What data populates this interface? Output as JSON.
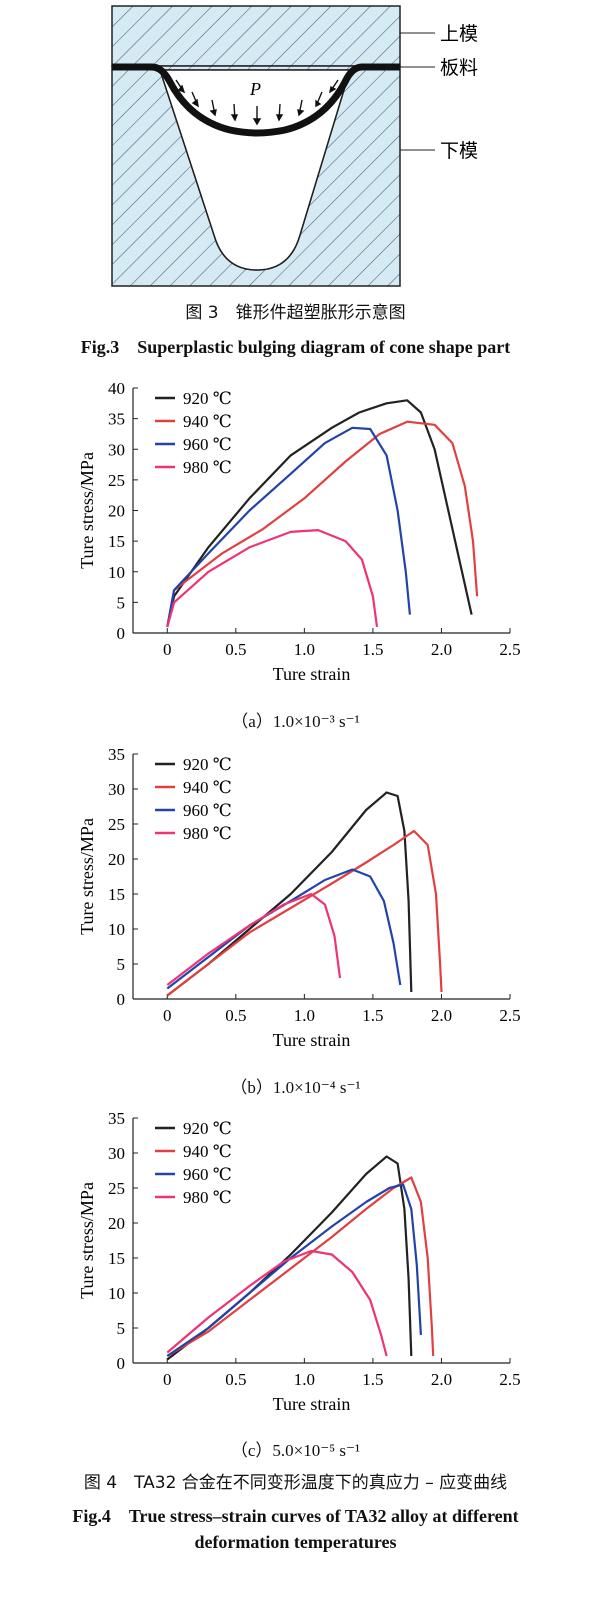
{
  "fig3": {
    "labels": {
      "upper": "上模",
      "sheet": "板料",
      "lower": "下模",
      "pressure": "P"
    },
    "caption_cn": "图 3　锥形件超塑胀形示意图",
    "caption_en": "Fig.3　Superplastic bulging diagram of cone shape part"
  },
  "fig4": {
    "caption_cn": "图 4　TA32 合金在不同变形温度下的真应力 – 应变曲线",
    "caption_en_line1": "Fig.4　True stress–strain curves of TA32 alloy at different",
    "caption_en_line2": "deformation temperatures"
  },
  "chart_data": [
    {
      "type": "line",
      "subcaption": "（a）1.0×10⁻³ s⁻¹",
      "xlabel": "Ture strain",
      "ylabel": "Ture stress/MPa",
      "xlim": [
        -0.25,
        2.5
      ],
      "ylim": [
        0,
        40
      ],
      "xticks": [
        "0",
        "0.5",
        "1.0",
        "1.5",
        "2.0",
        "2.5"
      ],
      "yticks": [
        "0",
        "5",
        "10",
        "15",
        "20",
        "25",
        "30",
        "35",
        "40"
      ],
      "legend_position": "top-left",
      "series": [
        {
          "name": "920 ℃",
          "color": "#222222",
          "points": [
            [
              0,
              1
            ],
            [
              0.05,
              6
            ],
            [
              0.3,
              14
            ],
            [
              0.6,
              22
            ],
            [
              0.9,
              29
            ],
            [
              1.2,
              33.5
            ],
            [
              1.4,
              36
            ],
            [
              1.6,
              37.5
            ],
            [
              1.75,
              38
            ],
            [
              1.85,
              36
            ],
            [
              1.95,
              30
            ],
            [
              2.05,
              20
            ],
            [
              2.15,
              10
            ],
            [
              2.22,
              3
            ]
          ]
        },
        {
          "name": "940 ℃",
          "color": "#e04040",
          "points": [
            [
              0,
              1
            ],
            [
              0.05,
              7
            ],
            [
              0.4,
              13
            ],
            [
              0.7,
              17
            ],
            [
              1.0,
              22
            ],
            [
              1.3,
              28
            ],
            [
              1.55,
              32.5
            ],
            [
              1.75,
              34.5
            ],
            [
              1.95,
              34
            ],
            [
              2.08,
              31
            ],
            [
              2.17,
              24
            ],
            [
              2.23,
              15
            ],
            [
              2.26,
              6
            ]
          ]
        },
        {
          "name": "960 ℃",
          "color": "#2244aa",
          "points": [
            [
              0,
              1
            ],
            [
              0.05,
              7
            ],
            [
              0.3,
              13
            ],
            [
              0.6,
              20
            ],
            [
              0.9,
              26
            ],
            [
              1.15,
              31
            ],
            [
              1.35,
              33.5
            ],
            [
              1.48,
              33.3
            ],
            [
              1.6,
              29
            ],
            [
              1.68,
              20
            ],
            [
              1.74,
              10
            ],
            [
              1.77,
              3
            ]
          ]
        },
        {
          "name": "980 ℃",
          "color": "#ee3377",
          "points": [
            [
              0,
              1
            ],
            [
              0.05,
              5
            ],
            [
              0.3,
              10
            ],
            [
              0.6,
              14
            ],
            [
              0.9,
              16.5
            ],
            [
              1.1,
              16.8
            ],
            [
              1.3,
              15
            ],
            [
              1.42,
              12
            ],
            [
              1.5,
              6
            ],
            [
              1.53,
              1
            ]
          ]
        }
      ]
    },
    {
      "type": "line",
      "subcaption": "（b）1.0×10⁻⁴ s⁻¹",
      "xlabel": "Ture strain",
      "ylabel": "Ture stress/MPa",
      "xlim": [
        -0.25,
        2.5
      ],
      "ylim": [
        0,
        35
      ],
      "xticks": [
        "0",
        "0.5",
        "1.0",
        "1.5",
        "2.0",
        "2.5"
      ],
      "yticks": [
        "0",
        "5",
        "10",
        "15",
        "20",
        "25",
        "30",
        "35"
      ],
      "legend_position": "top-left",
      "series": [
        {
          "name": "920 ℃",
          "color": "#222222",
          "points": [
            [
              0,
              0.5
            ],
            [
              0.3,
              5
            ],
            [
              0.6,
              10
            ],
            [
              0.9,
              15
            ],
            [
              1.2,
              21
            ],
            [
              1.45,
              27
            ],
            [
              1.6,
              29.5
            ],
            [
              1.68,
              29
            ],
            [
              1.73,
              24
            ],
            [
              1.76,
              14
            ],
            [
              1.78,
              1
            ]
          ]
        },
        {
          "name": "940 ℃",
          "color": "#e04040",
          "points": [
            [
              0,
              0.5
            ],
            [
              0.3,
              5
            ],
            [
              0.6,
              9.5
            ],
            [
              0.9,
              13
            ],
            [
              1.2,
              16.5
            ],
            [
              1.45,
              19.5
            ],
            [
              1.65,
              22
            ],
            [
              1.8,
              24
            ],
            [
              1.9,
              22
            ],
            [
              1.96,
              15
            ],
            [
              1.99,
              5
            ],
            [
              2.0,
              1
            ]
          ]
        },
        {
          "name": "960 ℃",
          "color": "#2244aa",
          "points": [
            [
              0,
              1.5
            ],
            [
              0.3,
              6
            ],
            [
              0.6,
              10.5
            ],
            [
              0.9,
              14
            ],
            [
              1.15,
              17
            ],
            [
              1.35,
              18.5
            ],
            [
              1.48,
              17.5
            ],
            [
              1.58,
              14
            ],
            [
              1.65,
              8
            ],
            [
              1.7,
              2
            ]
          ]
        },
        {
          "name": "980 ℃",
          "color": "#ee3377",
          "points": [
            [
              0,
              2
            ],
            [
              0.3,
              6.5
            ],
            [
              0.6,
              10.5
            ],
            [
              0.85,
              13.5
            ],
            [
              1.05,
              15
            ],
            [
              1.15,
              13.5
            ],
            [
              1.22,
              9
            ],
            [
              1.26,
              3
            ]
          ]
        }
      ]
    },
    {
      "type": "line",
      "subcaption": "（c）5.0×10⁻⁵ s⁻¹",
      "xlabel": "Ture strain",
      "ylabel": "Ture stress/MPa",
      "xlim": [
        -0.25,
        2.5
      ],
      "ylim": [
        0,
        35
      ],
      "xticks": [
        "0",
        "0.5",
        "1.0",
        "1.5",
        "2.0",
        "2.5"
      ],
      "yticks": [
        "0",
        "5",
        "10",
        "15",
        "20",
        "25",
        "30",
        "35"
      ],
      "legend_position": "top-left",
      "series": [
        {
          "name": "920 ℃",
          "color": "#222222",
          "points": [
            [
              0,
              0.5
            ],
            [
              0.3,
              5
            ],
            [
              0.6,
              10
            ],
            [
              0.9,
              15.5
            ],
            [
              1.2,
              21.5
            ],
            [
              1.45,
              27
            ],
            [
              1.6,
              29.5
            ],
            [
              1.68,
              28.5
            ],
            [
              1.73,
              22
            ],
            [
              1.76,
              12
            ],
            [
              1.78,
              1
            ]
          ]
        },
        {
          "name": "940 ℃",
          "color": "#e04040",
          "points": [
            [
              0,
              1
            ],
            [
              0.3,
              4.5
            ],
            [
              0.6,
              9
            ],
            [
              0.9,
              13.5
            ],
            [
              1.2,
              18
            ],
            [
              1.45,
              22
            ],
            [
              1.65,
              25
            ],
            [
              1.78,
              26.5
            ],
            [
              1.85,
              23
            ],
            [
              1.9,
              15
            ],
            [
              1.93,
              5
            ],
            [
              1.94,
              1
            ]
          ]
        },
        {
          "name": "960 ℃",
          "color": "#2244aa",
          "points": [
            [
              0,
              1
            ],
            [
              0.3,
              5
            ],
            [
              0.6,
              10
            ],
            [
              0.9,
              15
            ],
            [
              1.2,
              19.5
            ],
            [
              1.45,
              23
            ],
            [
              1.62,
              25
            ],
            [
              1.72,
              25.5
            ],
            [
              1.78,
              22
            ],
            [
              1.82,
              14
            ],
            [
              1.85,
              4
            ]
          ]
        },
        {
          "name": "980 ℃",
          "color": "#ee3377",
          "points": [
            [
              0,
              1.5
            ],
            [
              0.3,
              6.5
            ],
            [
              0.6,
              11
            ],
            [
              0.85,
              14.5
            ],
            [
              1.05,
              16
            ],
            [
              1.2,
              15.5
            ],
            [
              1.35,
              13
            ],
            [
              1.48,
              9
            ],
            [
              1.56,
              4
            ],
            [
              1.6,
              1
            ]
          ]
        }
      ]
    }
  ]
}
